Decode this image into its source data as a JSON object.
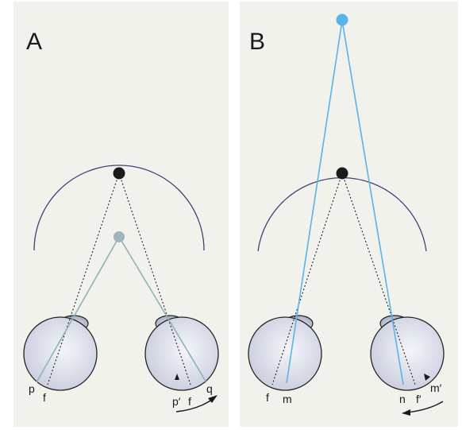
{
  "panels": [
    {
      "letter": "A",
      "labels": {
        "left_eye": [
          "p",
          "f"
        ],
        "right_eye": [
          "p′",
          "f",
          "q"
        ]
      }
    },
    {
      "letter": "B",
      "labels": {
        "left_eye": [
          "f",
          "m"
        ],
        "right_eye": [
          "n",
          "f′",
          "m′"
        ]
      }
    }
  ],
  "colors": {
    "panel_bg": "#f2f2ec",
    "horopter_arc": "#4a3c78",
    "fixation_point": "#1a1a1a",
    "near_point": "#9fb6b8",
    "near_lines": "#8fb2b6",
    "far_point": "#5ab4e6",
    "far_lines": "#5ab4e6",
    "eye_fill": "#d8dbe6",
    "eye_outline": "#222222"
  }
}
